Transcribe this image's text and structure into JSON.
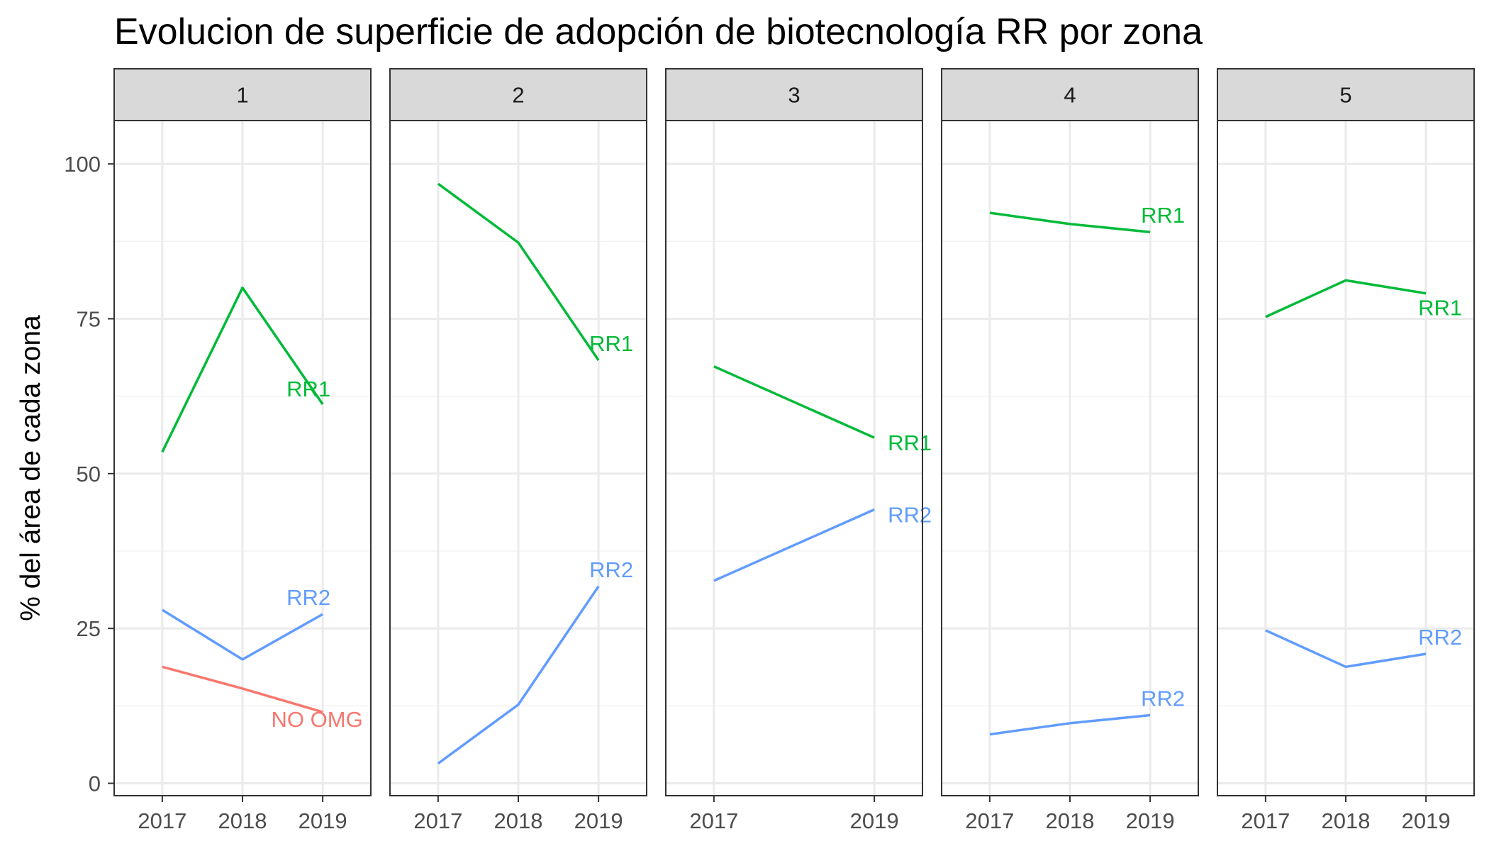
{
  "chart_data": {
    "type": "line",
    "title": "Evolucion de superficie de adopción de biotecnología RR por zona",
    "ylabel": "% del área de cada zona",
    "xlabel": "",
    "ylim": [
      -2,
      107
    ],
    "yticks": [
      0,
      25,
      50,
      75,
      100
    ],
    "grid": true,
    "legend": "none",
    "colors": {
      "NO OMG": "#F8766D",
      "RR1": "#00BA38",
      "RR2": "#619CFF"
    },
    "facets": [
      {
        "label": "1",
        "x": [
          2017,
          2018,
          2019
        ],
        "xticks": [
          "2017",
          "2018",
          "2019"
        ],
        "series": [
          {
            "name": "RR1",
            "values": [
              53.5,
              80.0,
              61.2
            ]
          },
          {
            "name": "RR2",
            "values": [
              28.0,
              20.0,
              27.3
            ]
          },
          {
            "name": "NO OMG",
            "values": [
              18.8,
              15.3,
              11.5
            ]
          }
        ]
      },
      {
        "label": "2",
        "x": [
          2017,
          2018,
          2019
        ],
        "xticks": [
          "2017",
          "2018",
          "2019"
        ],
        "series": [
          {
            "name": "RR1",
            "values": [
              96.8,
              87.3,
              68.3
            ]
          },
          {
            "name": "RR2",
            "values": [
              3.2,
              12.7,
              31.8
            ]
          }
        ]
      },
      {
        "label": "3",
        "x": [
          2017,
          2019
        ],
        "xticks": [
          "2017",
          "2019"
        ],
        "series": [
          {
            "name": "RR1",
            "values": [
              67.3,
              55.8
            ]
          },
          {
            "name": "RR2",
            "values": [
              32.7,
              44.2
            ]
          }
        ]
      },
      {
        "label": "4",
        "x": [
          2017,
          2018,
          2019
        ],
        "xticks": [
          "2017",
          "2018",
          "2019"
        ],
        "series": [
          {
            "name": "RR1",
            "values": [
              92.1,
              90.3,
              89.0
            ]
          },
          {
            "name": "RR2",
            "values": [
              7.9,
              9.7,
              11.0
            ]
          }
        ]
      },
      {
        "label": "5",
        "x": [
          2017,
          2018,
          2019
        ],
        "xticks": [
          "2017",
          "2018",
          "2019"
        ],
        "series": [
          {
            "name": "RR1",
            "values": [
              75.3,
              81.2,
              79.1
            ]
          },
          {
            "name": "RR2",
            "values": [
              24.7,
              18.8,
              20.9
            ]
          }
        ]
      }
    ]
  }
}
